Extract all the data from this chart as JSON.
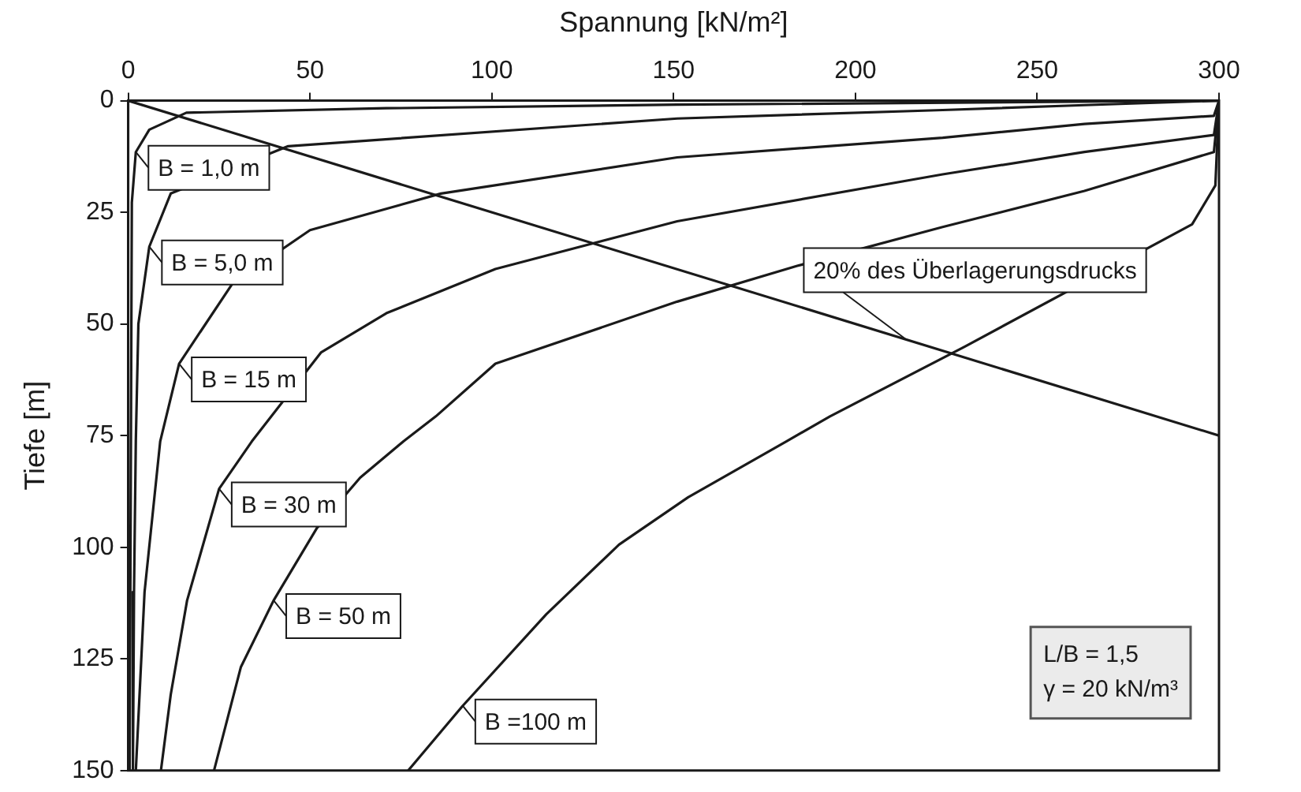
{
  "chart_data": {
    "type": "line",
    "xlabel": "Spannung [kN/m²]",
    "ylabel": "Tiefe [m]",
    "xlim": [
      0,
      300
    ],
    "xticks": [
      0,
      50,
      100,
      150,
      200,
      250,
      300
    ],
    "ylim": [
      150,
      0
    ],
    "yticks": [
      0,
      25,
      50,
      75,
      100,
      125,
      150
    ],
    "marker": "none",
    "line_style": "solid",
    "legend": false,
    "series": [
      {
        "color": "#1a1a1a",
        "x": [
          300,
          151,
          71,
          16,
          5.8,
          2.1,
          1.0,
          0.4
        ],
        "values": [
          0,
          0.9,
          1.7,
          2.7,
          6.5,
          11.5,
          22.8,
          150
        ]
      },
      {
        "color": "#1a1a1a",
        "x": [
          300,
          263,
          224,
          151,
          44,
          11.7,
          5.8,
          2.8,
          2.1,
          1.6,
          1.3
        ],
        "values": [
          0,
          1,
          2.1,
          4,
          10.2,
          20.8,
          32.7,
          50,
          76,
          110,
          150
        ]
      },
      {
        "color": "#1a1a1a",
        "x": [
          300,
          298.6,
          263,
          224,
          151,
          86,
          50,
          28.8,
          14,
          8.8,
          4.5,
          2.1
        ],
        "values": [
          0,
          3.4,
          5.2,
          8.3,
          12.7,
          20.8,
          29,
          40.8,
          58.9,
          76.3,
          110,
          150
        ]
      },
      {
        "color": "#1a1a1a",
        "x": [
          300,
          298.6,
          263,
          224,
          151,
          101,
          71,
          53,
          34,
          25,
          16.2,
          11.7,
          9
        ],
        "values": [
          0,
          7.7,
          11.5,
          16.5,
          27,
          37.7,
          47.6,
          56.4,
          76.3,
          86.9,
          111.9,
          133,
          150
        ]
      },
      {
        "color": "#1a1a1a",
        "x": [
          300,
          298.6,
          263,
          224,
          184,
          151,
          101,
          84.6,
          75.7,
          63.8,
          51.9,
          40,
          31,
          23.6
        ],
        "values": [
          0,
          11.5,
          20.2,
          28.3,
          37,
          45,
          58.9,
          70.7,
          76.3,
          84.4,
          95.7,
          111.9,
          126.8,
          150
        ]
      },
      {
        "color": "#1a1a1a",
        "x": [
          300,
          299,
          292.6,
          230,
          193,
          181,
          154,
          135,
          115,
          92,
          77
        ],
        "values": [
          0,
          19,
          27.7,
          55.1,
          70.7,
          76.3,
          88.8,
          99.4,
          115,
          135.5,
          150
        ]
      },
      {
        "color": "#1a1a1a",
        "x": [
          0,
          300
        ],
        "values": [
          0,
          75
        ]
      }
    ],
    "annotations": [
      {
        "text": "B = 1,0 m",
        "x": 2.1,
        "y": 11.5
      },
      {
        "text": "B = 5,0 m",
        "x": 5.8,
        "y": 32.7
      },
      {
        "text": "B = 15 m",
        "x": 14,
        "y": 58.9
      },
      {
        "text": "B = 30 m",
        "x": 25,
        "y": 86.9
      },
      {
        "text": "B = 50 m",
        "x": 40,
        "y": 111.9
      },
      {
        "text": "B =100 m",
        "x": 92,
        "y": 135.5
      },
      {
        "text": "20% des Überlagerungsdrucks",
        "x": 214,
        "y": 53.5
      },
      "L/B = 1,5",
      "γ = 20 kN/m³"
    ]
  }
}
